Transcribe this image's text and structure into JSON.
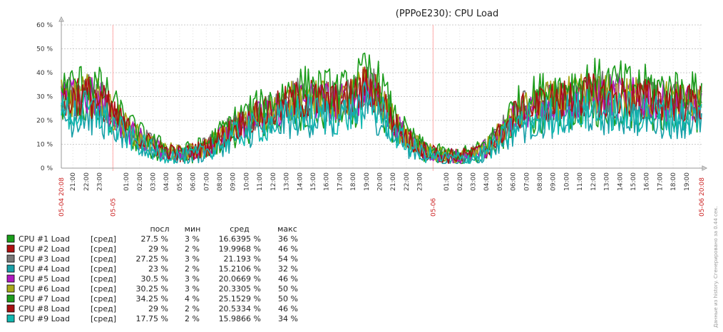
{
  "chart_data": {
    "type": "line",
    "title": "(PPPoE230): CPU Load",
    "y_unit": "%",
    "ylim": [
      0,
      60
    ],
    "y_ticks": [
      "0 %",
      "10 %",
      "20 %",
      "30 %",
      "40 %",
      "50 %",
      "60 %"
    ],
    "x_ticks_red": [
      "05-04 20:08",
      "05-05",
      "05-06",
      "05-06 20:08"
    ],
    "x_ticks": [
      "21:00",
      "22:00",
      "23:00",
      "01:00",
      "02:00",
      "03:00",
      "04:00",
      "05:00",
      "06:00",
      "07:00",
      "08:00",
      "09:00",
      "10:00",
      "11:00",
      "12:00",
      "13:00",
      "14:00",
      "15:00",
      "16:00",
      "17:00",
      "18:00",
      "19:00",
      "20:00",
      "21:00",
      "22:00",
      "23:00",
      "01:00",
      "02:00",
      "03:00",
      "04:00",
      "05:00",
      "06:00",
      "07:00",
      "08:00",
      "09:00",
      "10:00",
      "11:00",
      "12:00",
      "13:00",
      "14:00",
      "15:00",
      "16:00",
      "17:00",
      "18:00",
      "19:00"
    ],
    "grid": true,
    "legend_headers": [
      "посл",
      "мин",
      "сред",
      "макс"
    ],
    "series": [
      {
        "name": "CPU #1 Load",
        "func": "[сред]",
        "last": "27.5 %",
        "min": "3 %",
        "avg": "16.6395 %",
        "max": "36 %",
        "color": "#1a9e1a"
      },
      {
        "name": "CPU #2 Load",
        "func": "[сред]",
        "last": "29 %",
        "min": "2 %",
        "avg": "19.9968 %",
        "max": "46 %",
        "color": "#b01010"
      },
      {
        "name": "CPU #3 Load",
        "func": "[сред]",
        "last": "27.25 %",
        "min": "3 %",
        "avg": "21.193 %",
        "max": "54 %",
        "color": "#777777"
      },
      {
        "name": "CPU #4 Load",
        "func": "[сред]",
        "last": "23 %",
        "min": "2 %",
        "avg": "15.2106 %",
        "max": "32 %",
        "color": "#18a0a8"
      },
      {
        "name": "CPU #5 Load",
        "func": "[сред]",
        "last": "30.5 %",
        "min": "3 %",
        "avg": "20.0669 %",
        "max": "46 %",
        "color": "#b018c0"
      },
      {
        "name": "CPU #6 Load",
        "func": "[сред]",
        "last": "30.25 %",
        "min": "3 %",
        "avg": "20.3305 %",
        "max": "50 %",
        "color": "#a8a818"
      },
      {
        "name": "CPU #7 Load",
        "func": "[сред]",
        "last": "34.25 %",
        "min": "4 %",
        "avg": "25.1529 %",
        "max": "50 %",
        "color": "#1c9c1c"
      },
      {
        "name": "CPU #8 Load",
        "func": "[сред]",
        "last": "29 %",
        "min": "2 %",
        "avg": "20.5334 %",
        "max": "46 %",
        "color": "#a81010"
      },
      {
        "name": "CPU #9 Load",
        "func": "[сред]",
        "last": "17.75 %",
        "min": "2 %",
        "avg": "15.9866 %",
        "max": "34 %",
        "color": "#10b8b0"
      }
    ],
    "profile": {
      "hours_offset": [
        0,
        1,
        2,
        3,
        4,
        5,
        6,
        7,
        8,
        9,
        10,
        11,
        12,
        13,
        14,
        15,
        16,
        17,
        18,
        19,
        20,
        21,
        22,
        23,
        24,
        25,
        26,
        27,
        28,
        29,
        30,
        31,
        32,
        33,
        34,
        35,
        36,
        37,
        38,
        39,
        40,
        41,
        42,
        43,
        44,
        45,
        46,
        47,
        48
      ],
      "level": [
        28,
        29,
        30,
        28,
        22,
        16,
        12,
        9,
        7,
        6,
        7,
        9,
        13,
        17,
        20,
        22,
        24,
        27,
        29,
        28,
        28,
        27,
        30,
        34,
        29,
        18,
        12,
        8,
        6,
        5,
        5,
        6,
        9,
        15,
        22,
        25,
        27,
        28,
        29,
        30,
        31,
        30,
        30,
        29,
        29,
        28,
        28,
        27,
        27
      ]
    }
  },
  "side_note": "Данные из history. Сгенерировано за 0.44 сек."
}
